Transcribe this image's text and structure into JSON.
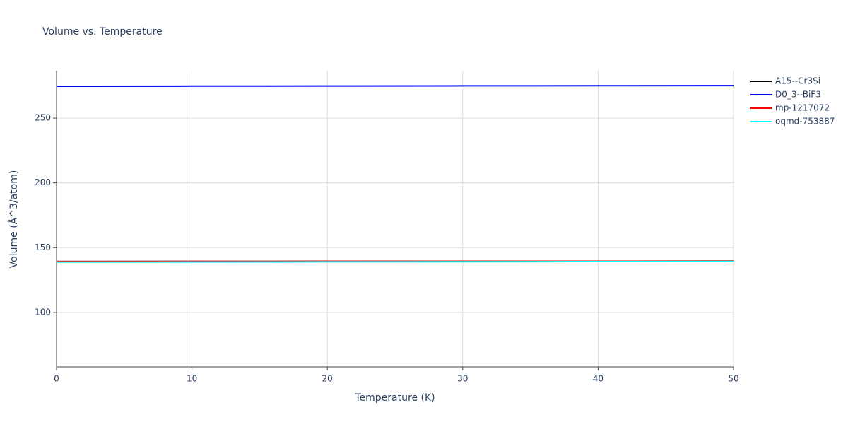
{
  "chart_data": {
    "type": "line",
    "title": "Volume vs. Temperature",
    "x_label": "Temperature (K)",
    "y_label": "Volume (Å^3/atom)",
    "x": [
      0,
      10,
      20,
      30,
      40,
      50
    ],
    "series": [
      {
        "name": "A15--Cr3Si",
        "color": "#000000",
        "values": [
          139.3,
          139.35,
          139.4,
          139.45,
          139.5,
          139.6
        ]
      },
      {
        "name": "D0_3--BiF3",
        "color": "#0000ff",
        "values": [
          274.6,
          274.7,
          274.8,
          274.9,
          275.0,
          275.1
        ]
      },
      {
        "name": "mp-1217072",
        "color": "#ff0000",
        "values": [
          139.3,
          139.35,
          139.4,
          139.45,
          139.5,
          139.6
        ]
      },
      {
        "name": "oqmd-753887",
        "color": "#00ffff",
        "values": [
          138.8,
          138.9,
          139.0,
          139.1,
          139.2,
          139.3
        ]
      }
    ],
    "xlim": [
      0,
      50
    ],
    "xticks": [
      0,
      10,
      20,
      30,
      40,
      50
    ],
    "ylim": [
      57.9,
      286.6
    ],
    "yticks": [
      100,
      150,
      200,
      250
    ],
    "grid": true,
    "legend": "outside-right"
  }
}
